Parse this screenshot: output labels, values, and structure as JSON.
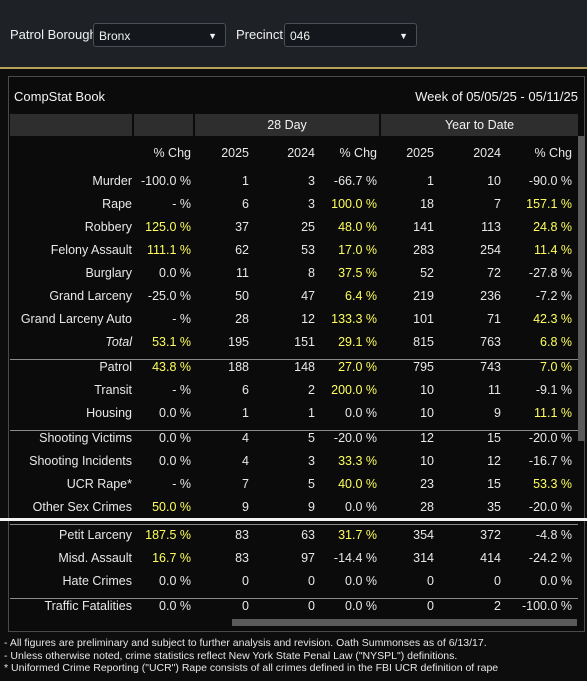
{
  "filters": {
    "borough_label": "Patrol Borough:",
    "borough": "Bronx",
    "precinct_label": "Precinct:",
    "precinct": "046"
  },
  "header": {
    "title": "CompStat Book",
    "week": "Week of 05/05/25 - 05/11/25"
  },
  "table": {
    "groups": [
      "28 Day",
      "Year to Date"
    ],
    "columns": [
      "% Chg",
      "2025",
      "2024",
      "% Chg",
      "2025",
      "2024",
      "% Chg"
    ],
    "sections": [
      [
        {
          "label": "Murder",
          "cells": [
            "-100.0 %",
            "1",
            "3",
            "-66.7 %",
            "1",
            "10",
            "-90.0 %"
          ]
        },
        {
          "label": "Rape",
          "cells": [
            "- %",
            "6",
            "3",
            "100.0 %",
            "18",
            "7",
            "157.1 %"
          ]
        },
        {
          "label": "Robbery",
          "cells": [
            "125.0 %",
            "37",
            "25",
            "48.0 %",
            "141",
            "113",
            "24.8 %"
          ]
        },
        {
          "label": "Felony Assault",
          "cells": [
            "111.1 %",
            "62",
            "53",
            "17.0 %",
            "283",
            "254",
            "11.4 %"
          ]
        },
        {
          "label": "Burglary",
          "cells": [
            "0.0 %",
            "11",
            "8",
            "37.5 %",
            "52",
            "72",
            "-27.8 %"
          ]
        },
        {
          "label": "Grand Larceny",
          "cells": [
            "-25.0 %",
            "50",
            "47",
            "6.4 %",
            "219",
            "236",
            "-7.2 %"
          ]
        },
        {
          "label": "Grand Larceny Auto",
          "cells": [
            "- %",
            "28",
            "12",
            "133.3 %",
            "101",
            "71",
            "42.3 %"
          ]
        },
        {
          "label": "Total",
          "cells": [
            "53.1 %",
            "195",
            "151",
            "29.1 %",
            "815",
            "763",
            "6.8 %"
          ]
        }
      ],
      [
        {
          "label": "Patrol",
          "cells": [
            "43.8 %",
            "188",
            "148",
            "27.0 %",
            "795",
            "743",
            "7.0 %"
          ]
        },
        {
          "label": "Transit",
          "cells": [
            "- %",
            "6",
            "2",
            "200.0 %",
            "10",
            "11",
            "-9.1 %"
          ]
        },
        {
          "label": "Housing",
          "cells": [
            "0.0 %",
            "1",
            "1",
            "0.0 %",
            "10",
            "9",
            "11.1 %"
          ]
        }
      ],
      [
        {
          "label": "Shooting Victims",
          "cells": [
            "0.0 %",
            "4",
            "5",
            "-20.0 %",
            "12",
            "15",
            "-20.0 %"
          ]
        },
        {
          "label": "Shooting Incidents",
          "cells": [
            "0.0 %",
            "4",
            "3",
            "33.3 %",
            "10",
            "12",
            "-16.7 %"
          ]
        },
        {
          "label": "UCR Rape*",
          "cells": [
            "- %",
            "7",
            "5",
            "40.0 %",
            "23",
            "15",
            "53.3 %"
          ]
        },
        {
          "label": "Other Sex Crimes",
          "cells": [
            "50.0 %",
            "9",
            "9",
            "0.0 %",
            "28",
            "35",
            "-20.0 %"
          ]
        }
      ],
      [
        {
          "label": "Petit Larceny",
          "cells": [
            "187.5 %",
            "83",
            "63",
            "31.7 %",
            "354",
            "372",
            "-4.8 %"
          ]
        },
        {
          "label": "Misd. Assault",
          "cells": [
            "16.7 %",
            "83",
            "97",
            "-14.4 %",
            "314",
            "414",
            "-24.2 %"
          ]
        },
        {
          "label": "Hate Crimes",
          "cells": [
            "0.0 %",
            "0",
            "0",
            "0.0 %",
            "0",
            "0",
            "0.0 %"
          ]
        }
      ],
      [
        {
          "label": "Traffic Fatalities",
          "cells": [
            "0.0 %",
            "0",
            "0",
            "0.0 %",
            "0",
            "2",
            "-100.0 %"
          ]
        }
      ]
    ]
  },
  "footnotes": [
    "- All figures are preliminary and subject to further analysis and revision. Oath Summonses as of 6/13/17.",
    "- Unless otherwise noted, crime statistics reflect New York State Penal Law (\"NYSPL\") definitions.",
    "* Uniformed Crime Reporting (\"UCR\") Rape consists of all crimes defined in the FBI UCR definition of rape"
  ]
}
